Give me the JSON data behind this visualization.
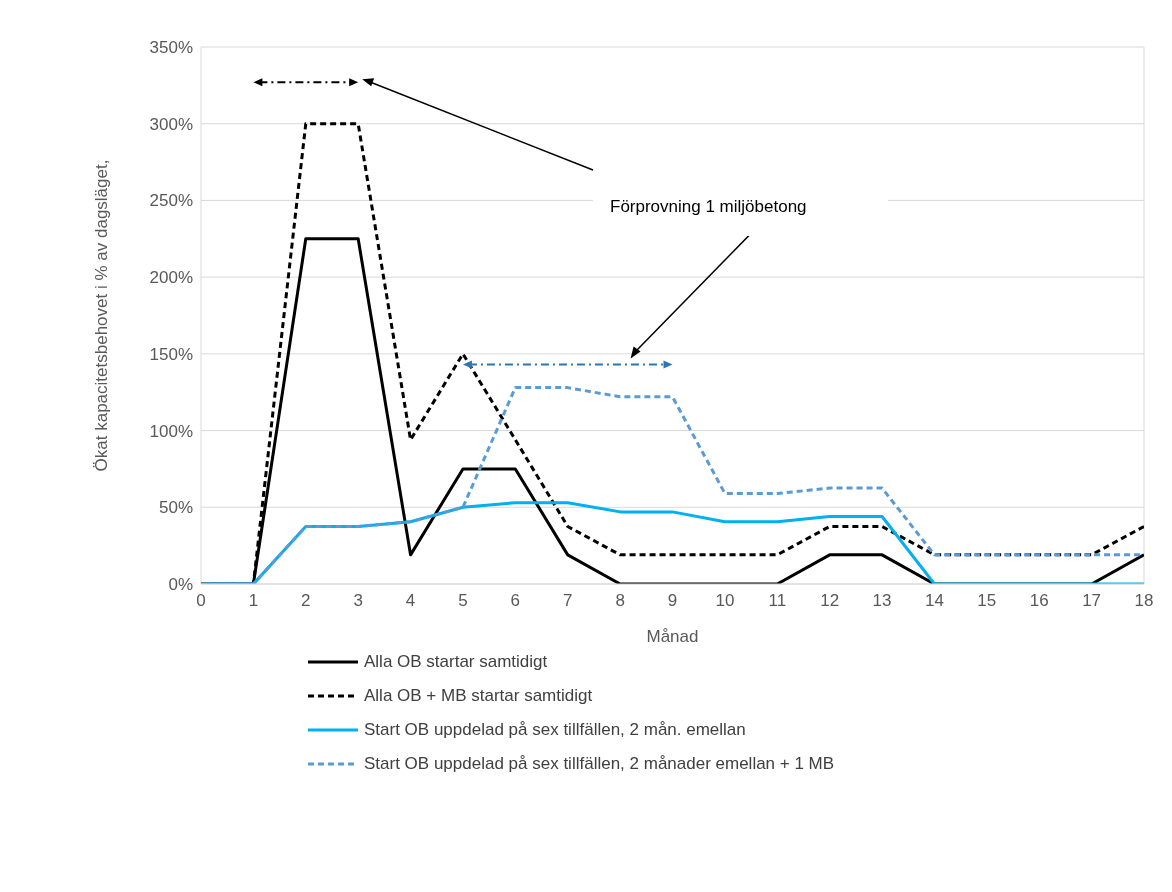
{
  "chart_data": {
    "type": "line",
    "xlabel": "Månad",
    "ylabel": "Ökat kapacitetsbehovet i % av dagsläget,",
    "x": [
      0,
      1,
      2,
      3,
      4,
      5,
      6,
      7,
      8,
      9,
      10,
      11,
      12,
      13,
      14,
      15,
      16,
      17,
      18
    ],
    "xlim": [
      0,
      18
    ],
    "xticks": [
      0,
      1,
      2,
      3,
      4,
      5,
      6,
      7,
      8,
      9,
      10,
      11,
      12,
      13,
      14,
      15,
      16,
      17,
      18
    ],
    "ylim": [
      0,
      350
    ],
    "yticks": [
      {
        "value": 0,
        "label": "0%"
      },
      {
        "value": 50,
        "label": "50%"
      },
      {
        "value": 100,
        "label": "100%"
      },
      {
        "value": 150,
        "label": "150%"
      },
      {
        "value": 200,
        "label": "200%"
      },
      {
        "value": 250,
        "label": "250%"
      },
      {
        "value": 300,
        "label": "300%"
      },
      {
        "value": 350,
        "label": "350%"
      }
    ],
    "grid": true,
    "legend": "bottom",
    "marker": "none",
    "series": [
      {
        "name": "Alla OB  startar samtidigt",
        "color": "#000000",
        "line_style": "solid",
        "values": [
          0,
          0,
          225,
          225,
          19,
          75,
          75,
          19,
          0,
          0,
          0,
          0,
          19,
          19,
          0,
          0,
          0,
          0,
          19
        ]
      },
      {
        "name": "Alla OB + MB startar samtidigt",
        "color": "#000000",
        "line_style": "dashed",
        "values": [
          0,
          0,
          300,
          300,
          94,
          150,
          94,
          37.5,
          19,
          19,
          19,
          19,
          37.5,
          37.5,
          19,
          19,
          19,
          19,
          37.5
        ]
      },
      {
        "name": "Start OB uppdelad på sex tillfällen, 2 mån. emellan",
        "color": "#00b0f0",
        "line_style": "solid",
        "values": [
          0,
          0,
          37.5,
          37.5,
          40.6,
          50,
          53,
          53,
          47,
          47,
          40.6,
          40.6,
          44,
          44,
          0,
          0,
          0,
          0,
          0
        ]
      },
      {
        "name": "Start OB uppdelad på sex tillfällen, 2 månader emellan + 1 MB",
        "color": "#5b9bd5",
        "line_style": "dashed",
        "values": [
          0,
          0,
          37.5,
          37.5,
          40.6,
          50,
          128,
          128,
          122,
          122,
          59,
          59,
          62.5,
          62.5,
          19,
          19,
          19,
          19,
          19
        ]
      }
    ],
    "annotations": [
      "Förprovning 1 miljöbetong"
    ]
  }
}
